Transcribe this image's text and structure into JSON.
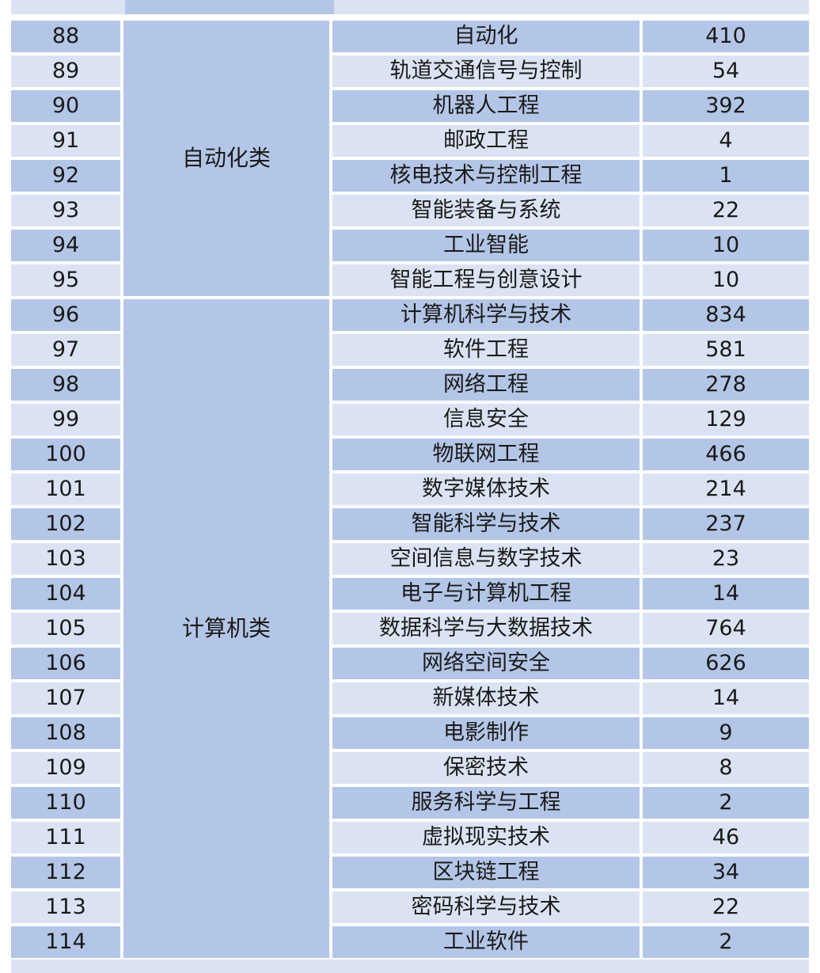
{
  "table": {
    "groups": [
      {
        "category": "自动化类",
        "rows": [
          {
            "no": "88",
            "major": "自动化",
            "count": "410"
          },
          {
            "no": "89",
            "major": "轨道交通信号与控制",
            "count": "54"
          },
          {
            "no": "90",
            "major": "机器人工程",
            "count": "392"
          },
          {
            "no": "91",
            "major": "邮政工程",
            "count": "4"
          },
          {
            "no": "92",
            "major": "核电技术与控制工程",
            "count": "1"
          },
          {
            "no": "93",
            "major": "智能装备与系统",
            "count": "22"
          },
          {
            "no": "94",
            "major": "工业智能",
            "count": "10"
          },
          {
            "no": "95",
            "major": "智能工程与创意设计",
            "count": "10"
          }
        ]
      },
      {
        "category": "计算机类",
        "rows": [
          {
            "no": "96",
            "major": "计算机科学与技术",
            "count": "834"
          },
          {
            "no": "97",
            "major": "软件工程",
            "count": "581"
          },
          {
            "no": "98",
            "major": "网络工程",
            "count": "278"
          },
          {
            "no": "99",
            "major": "信息安全",
            "count": "129"
          },
          {
            "no": "100",
            "major": "物联网工程",
            "count": "466"
          },
          {
            "no": "101",
            "major": "数字媒体技术",
            "count": "214"
          },
          {
            "no": "102",
            "major": "智能科学与技术",
            "count": "237"
          },
          {
            "no": "103",
            "major": "空间信息与数字技术",
            "count": "23"
          },
          {
            "no": "104",
            "major": "电子与计算机工程",
            "count": "14"
          },
          {
            "no": "105",
            "major": "数据科学与大数据技术",
            "count": "764"
          },
          {
            "no": "106",
            "major": "网络空间安全",
            "count": "626"
          },
          {
            "no": "107",
            "major": "新媒体技术",
            "count": "14"
          },
          {
            "no": "108",
            "major": "电影制作",
            "count": "9"
          },
          {
            "no": "109",
            "major": "保密技术",
            "count": "8"
          },
          {
            "no": "110",
            "major": "服务科学与工程",
            "count": "2"
          },
          {
            "no": "111",
            "major": "虚拟现实技术",
            "count": "46"
          },
          {
            "no": "112",
            "major": "区块链工程",
            "count": "34"
          },
          {
            "no": "113",
            "major": "密码科学与技术",
            "count": "22"
          },
          {
            "no": "114",
            "major": "工业软件",
            "count": "2"
          }
        ]
      }
    ]
  },
  "colors": {
    "dark_band": "#b4c6e7",
    "light_band": "#dbe3f3",
    "text": "#1a1a1a"
  }
}
